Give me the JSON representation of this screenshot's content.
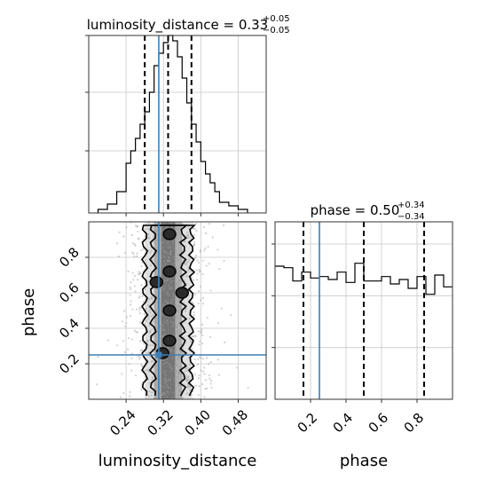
{
  "chart_data": [
    {
      "type": "histogram",
      "panel": "luminosity_distance marginal",
      "title_param": "luminosity_distance",
      "title_value": "0.33",
      "title_upper": "+0.05",
      "title_lower": "−0.05",
      "xlim": [
        0.16,
        0.54
      ],
      "ylim": [
        0,
        1.0
      ],
      "bin_edges": [
        0.18,
        0.2,
        0.22,
        0.24,
        0.25,
        0.26,
        0.27,
        0.28,
        0.29,
        0.3,
        0.31,
        0.32,
        0.33,
        0.34,
        0.35,
        0.36,
        0.37,
        0.38,
        0.39,
        0.4,
        0.41,
        0.42,
        0.43,
        0.44,
        0.46,
        0.48,
        0.5
      ],
      "counts": [
        0.02,
        0.05,
        0.12,
        0.28,
        0.35,
        0.42,
        0.5,
        0.57,
        0.68,
        0.83,
        0.9,
        0.96,
        1.0,
        0.97,
        0.88,
        0.76,
        0.62,
        0.5,
        0.4,
        0.29,
        0.22,
        0.17,
        0.12,
        0.06,
        0.04,
        0.02
      ],
      "quantiles": [
        0.28,
        0.33,
        0.38
      ],
      "truth": 0.31,
      "grid": true
    },
    {
      "type": "histogram",
      "panel": "phase marginal",
      "title_param": "phase",
      "title_value": "0.50",
      "title_upper": "+0.34",
      "title_lower": "−0.34",
      "xlim": [
        0.0,
        1.0
      ],
      "ylim": [
        0,
        1.2
      ],
      "bin_edges": [
        0.0,
        0.05,
        0.1,
        0.15,
        0.2,
        0.25,
        0.3,
        0.35,
        0.4,
        0.45,
        0.5,
        0.55,
        0.6,
        0.65,
        0.7,
        0.75,
        0.8,
        0.85,
        0.9,
        0.95,
        1.0
      ],
      "counts": [
        0.9,
        0.89,
        0.8,
        0.86,
        0.82,
        0.83,
        0.81,
        0.86,
        0.79,
        0.92,
        0.8,
        0.8,
        0.83,
        0.78,
        0.81,
        0.75,
        0.83,
        0.71,
        0.84,
        0.76
      ],
      "quantiles": [
        0.16,
        0.5,
        0.84
      ],
      "truth": 0.25,
      "grid": true
    },
    {
      "type": "scatter",
      "panel": "luminosity_distance vs phase joint",
      "xlabel": "luminosity_distance",
      "ylabel": "phase",
      "xlim": [
        0.16,
        0.54
      ],
      "ylim": [
        0.0,
        1.0
      ],
      "xticks": [
        "0.24",
        "0.32",
        "0.40",
        "0.48"
      ],
      "xtick_values": [
        0.24,
        0.32,
        0.4,
        0.48
      ],
      "yticks": [
        "0.2",
        "0.4",
        "0.6",
        "0.8"
      ],
      "ytick_values": [
        0.2,
        0.4,
        0.6,
        0.8
      ],
      "truth": [
        0.31,
        0.25
      ],
      "density_bands": [
        {
          "x": [
            0.28,
            0.38
          ],
          "shade": "#dcdcdc"
        },
        {
          "x": [
            0.3,
            0.36
          ],
          "shade": "#a8a8a8"
        },
        {
          "x": [
            0.315,
            0.345
          ],
          "shade": "#707070"
        }
      ],
      "contour_levels": 3,
      "grid": true
    }
  ],
  "phase_panel": {
    "xticks": [
      "0.2",
      "0.4",
      "0.6",
      "0.8"
    ],
    "xtick_values": [
      0.2,
      0.4,
      0.6,
      0.8
    ],
    "xlabel": "phase"
  },
  "colors": {
    "truth": "#3f7fb3",
    "line": "#000000",
    "grid": "#c8c8c8",
    "scatter": "#9a9a9a"
  }
}
